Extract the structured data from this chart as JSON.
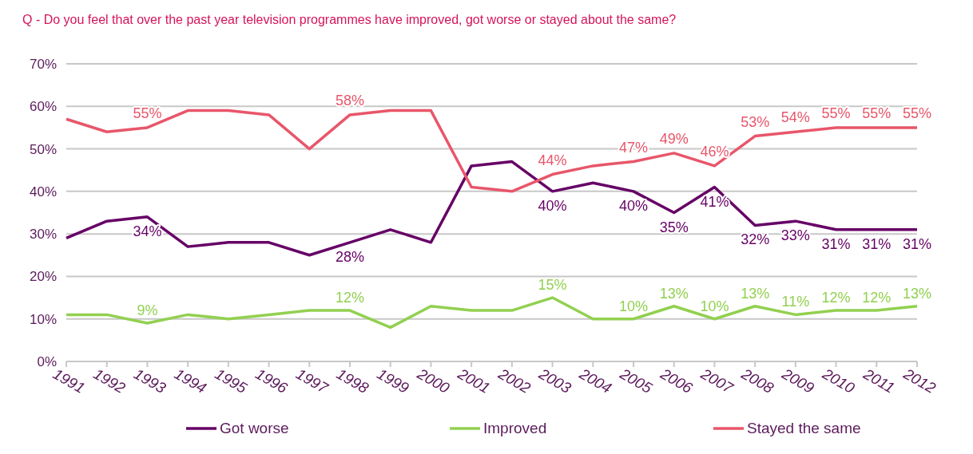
{
  "chart_data": {
    "type": "line",
    "title": "Q - Do you feel that over the past year television programmes have improved, got worse or stayed about the same?",
    "categories": [
      "1991",
      "1992",
      "1993",
      "1994",
      "1995",
      "1996",
      "1997",
      "1998",
      "1999",
      "2000",
      "2001",
      "2002",
      "2003",
      "2004",
      "2005",
      "2006",
      "2007",
      "2008",
      "2009",
      "2010",
      "2011",
      "2012"
    ],
    "series": [
      {
        "name": "Got worse",
        "color": "#660066",
        "values": [
          29,
          33,
          34,
          27,
          28,
          28,
          25,
          28,
          31,
          28,
          46,
          47,
          40,
          42,
          40,
          35,
          41,
          32,
          33,
          31,
          31,
          31
        ],
        "value_labels": [
          null,
          null,
          "34%",
          null,
          null,
          null,
          null,
          "28%",
          null,
          null,
          null,
          null,
          "40%",
          null,
          "40%",
          "35%",
          "41%",
          "32%",
          "33%",
          "31%",
          "31%",
          "31%"
        ]
      },
      {
        "name": "Improved",
        "color": "#92d050",
        "values": [
          11,
          11,
          9,
          11,
          10,
          11,
          12,
          12,
          8,
          13,
          12,
          12,
          15,
          10,
          10,
          13,
          10,
          13,
          11,
          12,
          12,
          13
        ],
        "value_labels": [
          null,
          null,
          "9%",
          null,
          null,
          null,
          null,
          "12%",
          null,
          null,
          null,
          null,
          "15%",
          null,
          "10%",
          "13%",
          "10%",
          "13%",
          "11%",
          "12%",
          "12%",
          "13%"
        ]
      },
      {
        "name": "Stayed the same",
        "color": "#e8566a",
        "values": [
          57,
          54,
          55,
          59,
          59,
          58,
          50,
          58,
          59,
          59,
          41,
          40,
          44,
          46,
          47,
          49,
          46,
          53,
          54,
          55,
          55,
          55
        ],
        "value_labels": [
          null,
          null,
          "55%",
          null,
          null,
          null,
          null,
          "58%",
          null,
          null,
          null,
          null,
          "44%",
          null,
          "47%",
          "49%",
          "46%",
          "53%",
          "54%",
          "55%",
          "55%",
          "55%"
        ]
      }
    ],
    "ylim": [
      0,
      70
    ],
    "yticks": [
      {
        "value": 0,
        "label": "0%"
      },
      {
        "value": 10,
        "label": "10%"
      },
      {
        "value": 20,
        "label": "20%"
      },
      {
        "value": 30,
        "label": "30%"
      },
      {
        "value": 40,
        "label": "40%"
      },
      {
        "value": 50,
        "label": "50%"
      },
      {
        "value": 60,
        "label": "60%"
      },
      {
        "value": 70,
        "label": "70%"
      }
    ],
    "grid": "y",
    "legend": "bottom",
    "marker": "none",
    "line_style": "solid"
  }
}
